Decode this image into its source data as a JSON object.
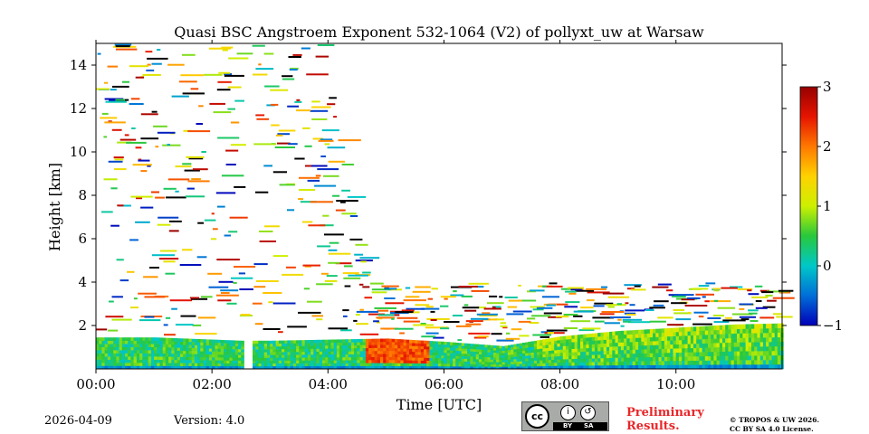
{
  "chart_data": {
    "type": "heatmap",
    "title": "Quasi BSC Angstroem Exponent 532-1064 (V2) of pollyxt_uw at Warsaw",
    "xlabel": "Time [UTC]",
    "ylabel": "Height [km]",
    "xlim_hours": [
      0,
      11.83
    ],
    "ylim_km": [
      0,
      15
    ],
    "xticks": [
      0,
      2,
      4,
      6,
      8,
      10
    ],
    "xtick_labels": [
      "00:00",
      "02:00",
      "04:00",
      "06:00",
      "08:00",
      "10:00"
    ],
    "yticks": [
      2,
      4,
      6,
      8,
      10,
      12,
      14
    ],
    "ytick_labels": [
      "2",
      "4",
      "6",
      "8",
      "10",
      "12",
      "14"
    ],
    "colorbar": {
      "min": -1,
      "max": 3,
      "ticks": [
        3,
        2,
        1,
        0,
        -1
      ],
      "tick_labels": [
        "3",
        "2",
        "1",
        "0",
        "−1"
      ],
      "colors": [
        "#0000b8",
        "#006ed8",
        "#00c8c8",
        "#28c83c",
        "#cdf000",
        "#ffd200",
        "#ff7800",
        "#e61400",
        "#960000"
      ]
    },
    "data_gaps_hours": [
      [
        2.5,
        2.68
      ]
    ],
    "boundary_layer_top_km": [
      [
        0.0,
        1.45
      ],
      [
        1.0,
        1.45
      ],
      [
        2.5,
        1.3
      ],
      [
        3.0,
        1.3
      ],
      [
        4.0,
        1.35
      ],
      [
        5.0,
        1.4
      ],
      [
        6.0,
        1.25
      ],
      [
        7.0,
        1.05
      ],
      [
        8.0,
        1.5
      ],
      [
        9.0,
        1.75
      ],
      [
        10.0,
        1.9
      ],
      [
        11.0,
        2.05
      ],
      [
        11.83,
        2.1
      ]
    ],
    "boundary_layer_mean_value": 0.4,
    "high_value_patch": {
      "time_hours": [
        4.6,
        5.7
      ],
      "height_km": [
        0.2,
        1.4
      ],
      "value": 2.4
    }
  },
  "footer": {
    "date": "2026-04-09",
    "version": "Version: 4.0",
    "license_badge": {
      "cc": "cc",
      "by": "BY",
      "sa": "SA"
    },
    "preliminary": [
      "Preliminary",
      "Results."
    ],
    "copyright": [
      "© TROPOS & UW 2026.",
      "CC BY SA 4.0 License."
    ]
  }
}
